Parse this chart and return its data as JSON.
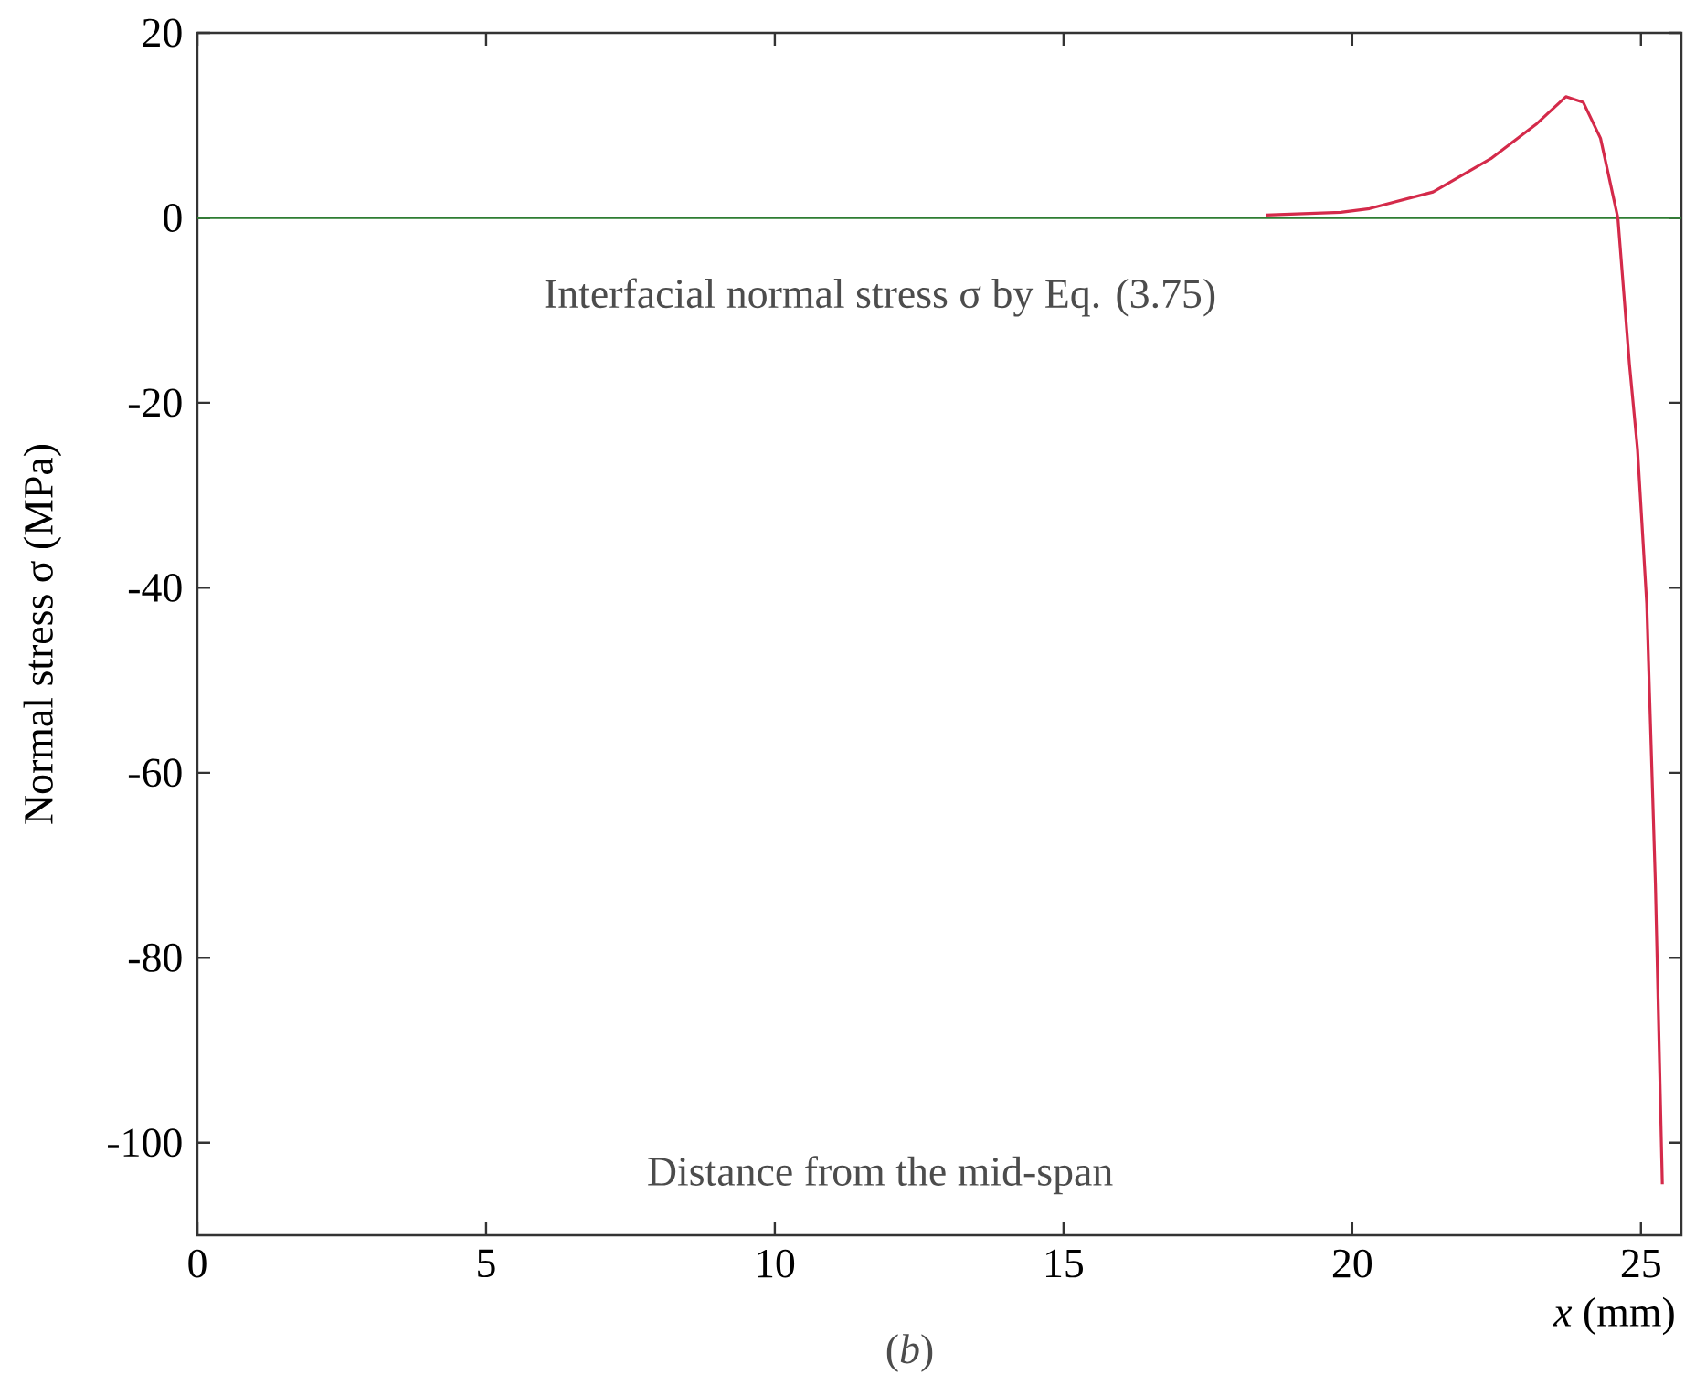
{
  "chart_data": {
    "type": "line",
    "xlabel": "*x* (mm)",
    "ylabel": "Normal  stress σ (MPa)",
    "annotations": [
      "Interfacial normal stress σ by Eq. (3.75)",
      "Distance from the mid-span",
      "(*b*)"
    ],
    "series": [
      {
        "color": "#d42a4a",
        "x": [
          18.5,
          19.8,
          20.3,
          21.4,
          22.4,
          23.2,
          23.7,
          24.0,
          24.3,
          24.6,
          24.8,
          24.94,
          25.1,
          25.25,
          25.37
        ],
        "values": [
          0.3,
          0.6,
          1.0,
          2.8,
          6.4,
          10.2,
          13.1,
          12.5,
          8.6,
          0,
          -15.8,
          -25,
          -41.7,
          -72,
          -104.5
        ]
      }
    ],
    "ref_lines": [
      {
        "axis": "y",
        "value": 0,
        "color": "#2e7d32"
      }
    ],
    "xlim": [
      0,
      25.7
    ],
    "ylim": [
      -110,
      20
    ],
    "xticks": [
      0,
      5,
      10,
      15,
      20,
      25
    ],
    "yticks": [
      -100,
      -80,
      -60,
      -40,
      -20,
      0,
      20
    ],
    "marker": "none",
    "line_style": "solid"
  }
}
